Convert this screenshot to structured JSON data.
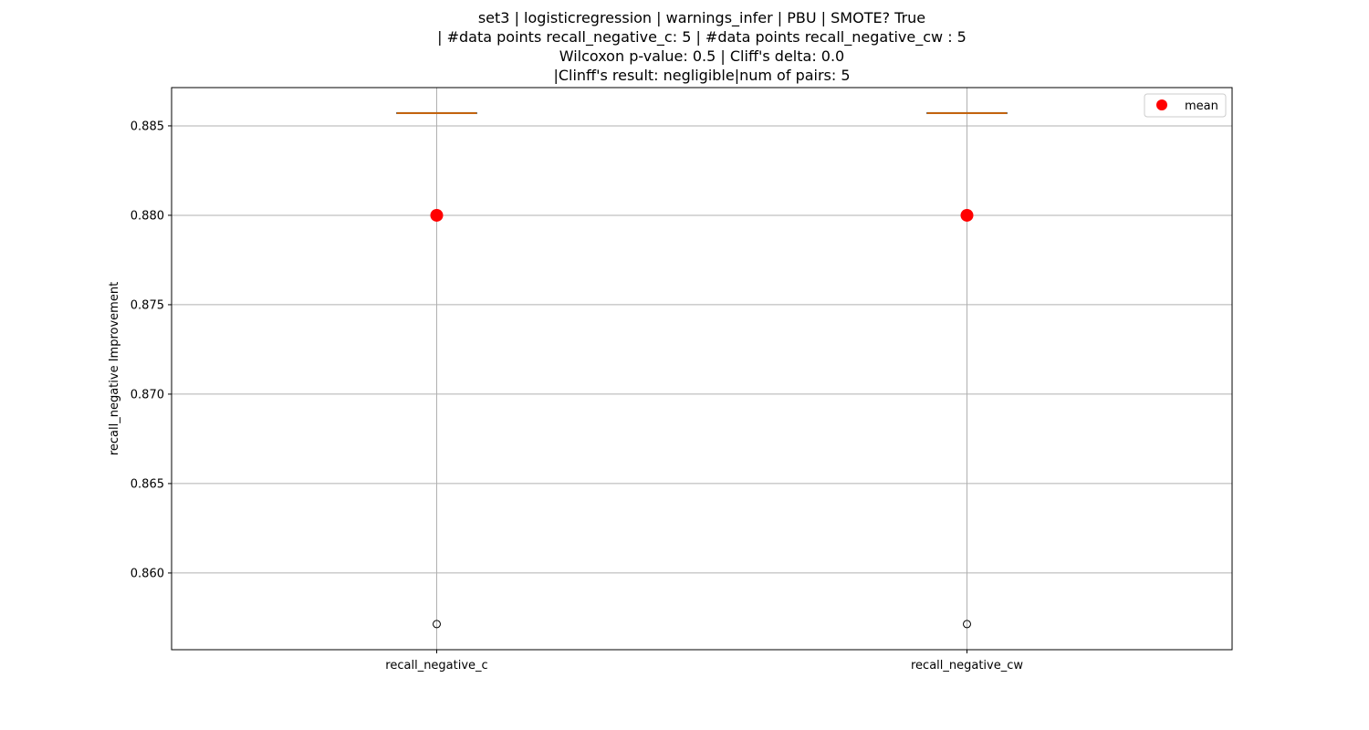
{
  "chart_data": {
    "type": "box",
    "title_lines": [
      "set3 | logisticregression | warnings_infer | PBU | SMOTE? True",
      "| #data points recall_negative_c: 5 | #data points recall_negative_cw : 5",
      "Wilcoxon p-value: 0.5 | Cliff's delta: 0.0",
      "|Clinff's result: negligible|num of pairs: 5"
    ],
    "xlabel": "",
    "ylabel": "recall_negative Improvement",
    "ylim": [
      0.85571,
      0.88714
    ],
    "yticks": [
      0.86,
      0.865,
      0.87,
      0.875,
      0.88,
      0.885
    ],
    "ytick_labels": [
      "0.860",
      "0.865",
      "0.870",
      "0.875",
      "0.880",
      "0.885"
    ],
    "grid": true,
    "legend": {
      "placement": "top-right",
      "entries": [
        "mean"
      ]
    },
    "categories": [
      "recall_negative_c",
      "recall_negative_cw"
    ],
    "boxes": [
      {
        "name": "recall_negative_c",
        "whislo": 0.885714,
        "q1": 0.885714,
        "median": 0.885714,
        "q3": 0.885714,
        "whishi": 0.885714,
        "outliers": [
          0.857143
        ],
        "mean": 0.88
      },
      {
        "name": "recall_negative_cw",
        "whislo": 0.885714,
        "q1": 0.885714,
        "median": 0.885714,
        "q3": 0.885714,
        "whishi": 0.885714,
        "outliers": [
          0.857143
        ],
        "mean": 0.88
      }
    ],
    "colors": {
      "mean_marker": "#ff0000",
      "median_line": "#ff7f0e",
      "grid": "#b0b0b0",
      "box": "#000000"
    }
  }
}
